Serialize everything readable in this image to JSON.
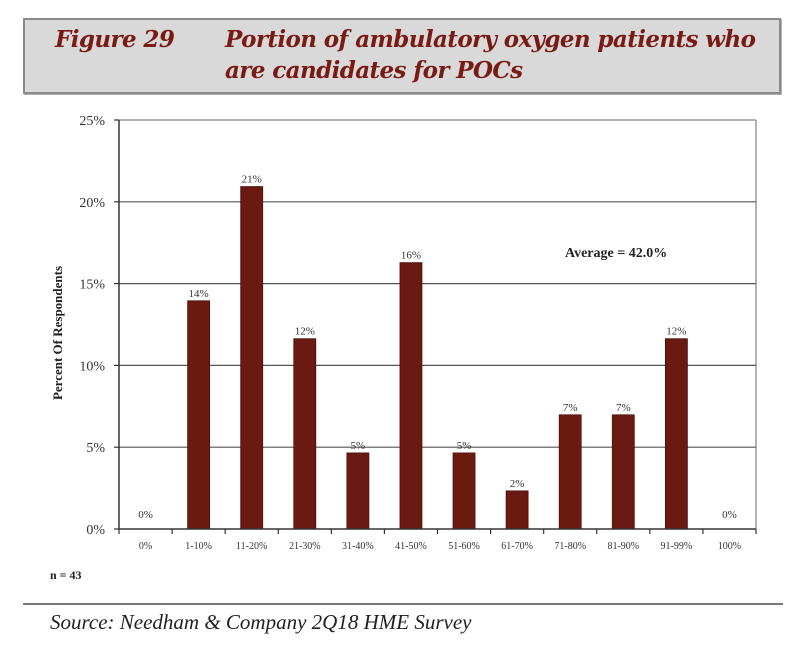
{
  "header": {
    "figure_label": "Figure 29",
    "title": "Portion of ambulatory oxygen patients who are candidates for POCs"
  },
  "chart_data": {
    "type": "bar",
    "title": "Portion of ambulatory oxygen patients who are candidates for POCs",
    "xlabel": "",
    "ylabel": "Percent Of Respondents",
    "categories": [
      "0%",
      "1-10%",
      "11-20%",
      "21-30%",
      "31-40%",
      "41-50%",
      "51-60%",
      "61-70%",
      "71-80%",
      "81-90%",
      "91-99%",
      "100%"
    ],
    "values": [
      0,
      13.95,
      20.93,
      11.63,
      4.65,
      16.28,
      4.65,
      2.33,
      6.98,
      6.98,
      11.63,
      0
    ],
    "data_labels": [
      "0%",
      "14%",
      "21%",
      "12%",
      "5%",
      "16%",
      "5%",
      "2%",
      "7%",
      "7%",
      "12%",
      "0%"
    ],
    "ylim": [
      0,
      25
    ],
    "yticks": [
      0,
      5,
      10,
      15,
      20,
      25
    ],
    "ytick_labels": [
      "0%",
      "5%",
      "10%",
      "15%",
      "20%",
      "25%"
    ],
    "grid": true,
    "legend": "none",
    "annotation": "Average = 42.0%",
    "bar_color": "#6b1a12"
  },
  "footer": {
    "n_label": "n = 43",
    "source": "Source: Needham & Company 2Q18 HME Survey"
  }
}
